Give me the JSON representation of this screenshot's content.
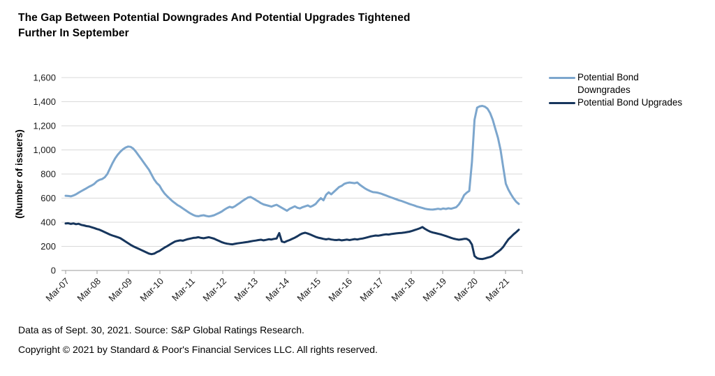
{
  "title": {
    "line1": "The Gap Between Potential Downgrades And Potential Upgrades Tightened",
    "line2": "Further In September"
  },
  "legend": [
    {
      "label": "Potential Bond Downgrades",
      "color": "#7CA6CD"
    },
    {
      "label": "Potential Bond Upgrades",
      "color": "#17365D"
    }
  ],
  "footnotes": {
    "line1": "Data as of Sept. 30, 2021. Source: S&P Global Ratings Research.",
    "line2": "Copyright © 2021 by Standard & Poor's Financial Services LLC. All rights reserved."
  },
  "chart_data": {
    "type": "line",
    "title": "The Gap Between Potential Downgrades And Potential Upgrades Tightened Further In September",
    "xlabel": "",
    "ylabel": "(Number of issuers)",
    "ylim": [
      0,
      1600
    ],
    "ytick_interval": 200,
    "y_tick_labels": [
      "0",
      "200",
      "400",
      "600",
      "800",
      "1,000",
      "1,200",
      "1,400",
      "1,600"
    ],
    "x_frequency": "monthly",
    "x_start": "Mar-07",
    "x_end": "Sep-21",
    "x_tick_labels": [
      "Mar-07",
      "Mar-08",
      "Mar-09",
      "Mar-10",
      "Mar-11",
      "Mar-12",
      "Mar-13",
      "Mar-14",
      "Mar-15",
      "Mar-16",
      "Mar-17",
      "Mar-18",
      "Mar-19",
      "Mar-20",
      "Mar-21"
    ],
    "grid": "horizontal",
    "legend_position": "right",
    "series": [
      {
        "name": "Potential Bond Downgrades",
        "color": "#7CA6CD",
        "values": [
          620,
          618,
          615,
          622,
          632,
          645,
          658,
          670,
          682,
          695,
          705,
          718,
          740,
          752,
          758,
          772,
          800,
          845,
          890,
          930,
          960,
          985,
          1005,
          1020,
          1028,
          1025,
          1010,
          985,
          955,
          925,
          895,
          865,
          835,
          795,
          755,
          725,
          705,
          668,
          638,
          615,
          595,
          575,
          558,
          542,
          530,
          515,
          500,
          485,
          472,
          460,
          452,
          450,
          455,
          458,
          452,
          448,
          452,
          458,
          468,
          478,
          490,
          505,
          518,
          528,
          522,
          532,
          548,
          562,
          578,
          592,
          605,
          610,
          598,
          585,
          572,
          558,
          548,
          542,
          536,
          530,
          538,
          545,
          532,
          520,
          508,
          495,
          512,
          522,
          532,
          520,
          515,
          525,
          532,
          540,
          528,
          538,
          552,
          578,
          600,
          582,
          628,
          648,
          632,
          652,
          672,
          692,
          702,
          718,
          726,
          730,
          727,
          724,
          730,
          710,
          695,
          680,
          668,
          658,
          650,
          648,
          644,
          638,
          630,
          622,
          614,
          606,
          598,
          590,
          582,
          576,
          568,
          560,
          552,
          545,
          538,
          530,
          524,
          518,
          512,
          508,
          506,
          505,
          508,
          512,
          508,
          514,
          510,
          516,
          512,
          518,
          525,
          548,
          580,
          625,
          645,
          660,
          900,
          1250,
          1350,
          1362,
          1365,
          1358,
          1342,
          1305,
          1250,
          1175,
          1100,
          1000,
          860,
          720,
          670,
          632,
          598,
          570,
          552
        ]
      },
      {
        "name": "Potential Bond Upgrades",
        "color": "#17365D",
        "values": [
          390,
          392,
          386,
          390,
          384,
          387,
          378,
          374,
          368,
          365,
          358,
          352,
          344,
          338,
          328,
          318,
          308,
          298,
          290,
          283,
          276,
          268,
          254,
          240,
          226,
          212,
          200,
          190,
          180,
          170,
          160,
          150,
          140,
          135,
          140,
          152,
          162,
          176,
          190,
          202,
          215,
          228,
          240,
          246,
          250,
          247,
          254,
          260,
          265,
          270,
          272,
          276,
          270,
          267,
          272,
          276,
          270,
          264,
          254,
          244,
          234,
          227,
          222,
          219,
          217,
          221,
          225,
          228,
          231,
          234,
          237,
          241,
          245,
          248,
          252,
          255,
          250,
          254,
          259,
          257,
          262,
          265,
          310,
          240,
          234,
          244,
          252,
          262,
          272,
          284,
          298,
          308,
          313,
          306,
          298,
          288,
          279,
          272,
          267,
          262,
          258,
          262,
          257,
          254,
          252,
          255,
          250,
          253,
          256,
          252,
          256,
          260,
          257,
          262,
          265,
          270,
          276,
          282,
          286,
          290,
          288,
          292,
          296,
          300,
          298,
          302,
          305,
          308,
          310,
          312,
          314,
          318,
          322,
          328,
          335,
          342,
          350,
          360,
          345,
          332,
          322,
          315,
          310,
          305,
          300,
          293,
          286,
          278,
          271,
          264,
          259,
          255,
          258,
          262,
          262,
          250,
          215,
          120,
          102,
          96,
          95,
          100,
          106,
          112,
          122,
          140,
          155,
          172,
          195,
          228,
          258,
          278,
          300,
          318,
          338
        ]
      }
    ]
  }
}
